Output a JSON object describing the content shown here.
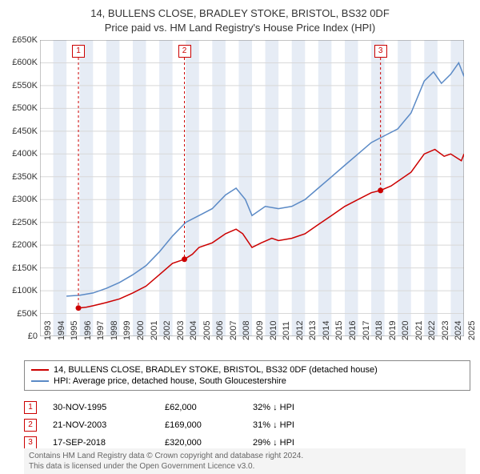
{
  "title": {
    "line1": "14, BULLENS CLOSE, BRADLEY STOKE, BRISTOL, BS32 0DF",
    "line2": "Price paid vs. HM Land Registry's House Price Index (HPI)"
  },
  "chart": {
    "type": "line",
    "background_color": "#ffffff",
    "grid_color": "#d8d8d8",
    "plot_border_color": "#888888",
    "x_axis": {
      "min": 1993,
      "max": 2025,
      "ticks": [
        1993,
        1994,
        1995,
        1996,
        1997,
        1998,
        1999,
        2000,
        2001,
        2002,
        2003,
        2004,
        2005,
        2006,
        2007,
        2008,
        2009,
        2010,
        2011,
        2012,
        2013,
        2014,
        2015,
        2016,
        2017,
        2018,
        2019,
        2020,
        2021,
        2022,
        2023,
        2024,
        2025
      ],
      "label_fontsize": 11,
      "label_rotation": -90
    },
    "y_axis": {
      "min": 0,
      "max": 650000,
      "tick_step": 50000,
      "tick_labels": [
        "£0",
        "£50K",
        "£100K",
        "£150K",
        "£200K",
        "£250K",
        "£300K",
        "£350K",
        "£400K",
        "£450K",
        "£500K",
        "£550K",
        "£600K",
        "£650K"
      ],
      "label_fontsize": 11
    },
    "band_color": "#e6ecf5",
    "series": [
      {
        "name": "property",
        "label": "14, BULLENS CLOSE, BRADLEY STOKE, BRISTOL, BS32 0DF (detached house)",
        "color": "#cc0000",
        "line_width": 1.5,
        "data": [
          [
            1995.9,
            62000
          ],
          [
            1996.5,
            64000
          ],
          [
            1997,
            67000
          ],
          [
            1998,
            74000
          ],
          [
            1999,
            82000
          ],
          [
            2000,
            95000
          ],
          [
            2001,
            110000
          ],
          [
            2002,
            135000
          ],
          [
            2003,
            160000
          ],
          [
            2003.9,
            169000
          ],
          [
            2004.5,
            180000
          ],
          [
            2005,
            195000
          ],
          [
            2006,
            205000
          ],
          [
            2007,
            225000
          ],
          [
            2007.8,
            235000
          ],
          [
            2008.3,
            225000
          ],
          [
            2009,
            195000
          ],
          [
            2009.7,
            205000
          ],
          [
            2010.5,
            215000
          ],
          [
            2011,
            210000
          ],
          [
            2012,
            215000
          ],
          [
            2013,
            225000
          ],
          [
            2014,
            245000
          ],
          [
            2015,
            265000
          ],
          [
            2016,
            285000
          ],
          [
            2017,
            300000
          ],
          [
            2018,
            315000
          ],
          [
            2018.7,
            320000
          ],
          [
            2019.5,
            330000
          ],
          [
            2020,
            340000
          ],
          [
            2021,
            360000
          ],
          [
            2022,
            400000
          ],
          [
            2022.8,
            410000
          ],
          [
            2023.5,
            395000
          ],
          [
            2024,
            400000
          ],
          [
            2024.8,
            385000
          ],
          [
            2025,
            400000
          ]
        ],
        "markers": [
          {
            "id": "1",
            "x": 1995.9,
            "y": 62000,
            "color": "#cc0000"
          },
          {
            "id": "2",
            "x": 2003.9,
            "y": 169000,
            "color": "#cc0000"
          },
          {
            "id": "3",
            "x": 2018.7,
            "y": 320000,
            "color": "#cc0000"
          }
        ]
      },
      {
        "name": "hpi",
        "label": "HPI: Average price, detached house, South Gloucestershire",
        "color": "#5b8ac6",
        "line_width": 1.5,
        "data": [
          [
            1995,
            88000
          ],
          [
            1996,
            90000
          ],
          [
            1997,
            95000
          ],
          [
            1998,
            105000
          ],
          [
            1999,
            118000
          ],
          [
            2000,
            135000
          ],
          [
            2001,
            155000
          ],
          [
            2002,
            185000
          ],
          [
            2003,
            220000
          ],
          [
            2004,
            250000
          ],
          [
            2005,
            265000
          ],
          [
            2006,
            280000
          ],
          [
            2007,
            310000
          ],
          [
            2007.8,
            325000
          ],
          [
            2008.5,
            300000
          ],
          [
            2009,
            265000
          ],
          [
            2010,
            285000
          ],
          [
            2011,
            280000
          ],
          [
            2012,
            285000
          ],
          [
            2013,
            300000
          ],
          [
            2014,
            325000
          ],
          [
            2015,
            350000
          ],
          [
            2016,
            375000
          ],
          [
            2017,
            400000
          ],
          [
            2018,
            425000
          ],
          [
            2019,
            440000
          ],
          [
            2020,
            455000
          ],
          [
            2021,
            490000
          ],
          [
            2022,
            560000
          ],
          [
            2022.7,
            580000
          ],
          [
            2023.3,
            555000
          ],
          [
            2024,
            575000
          ],
          [
            2024.6,
            600000
          ],
          [
            2025,
            570000
          ]
        ]
      }
    ]
  },
  "legend": {
    "items": [
      {
        "color": "#cc0000",
        "label": "14, BULLENS CLOSE, BRADLEY STOKE, BRISTOL, BS32 0DF (detached house)"
      },
      {
        "color": "#5b8ac6",
        "label": "HPI: Average price, detached house, South Gloucestershire"
      }
    ]
  },
  "sales": [
    {
      "id": "1",
      "date": "30-NOV-1995",
      "price": "£62,000",
      "pct": "32% ↓ HPI"
    },
    {
      "id": "2",
      "date": "21-NOV-2003",
      "price": "£169,000",
      "pct": "31% ↓ HPI"
    },
    {
      "id": "3",
      "date": "17-SEP-2018",
      "price": "£320,000",
      "pct": "29% ↓ HPI"
    }
  ],
  "footer": {
    "line1": "Contains HM Land Registry data © Crown copyright and database right 2024.",
    "line2": "This data is licensed under the Open Government Licence v3.0."
  }
}
